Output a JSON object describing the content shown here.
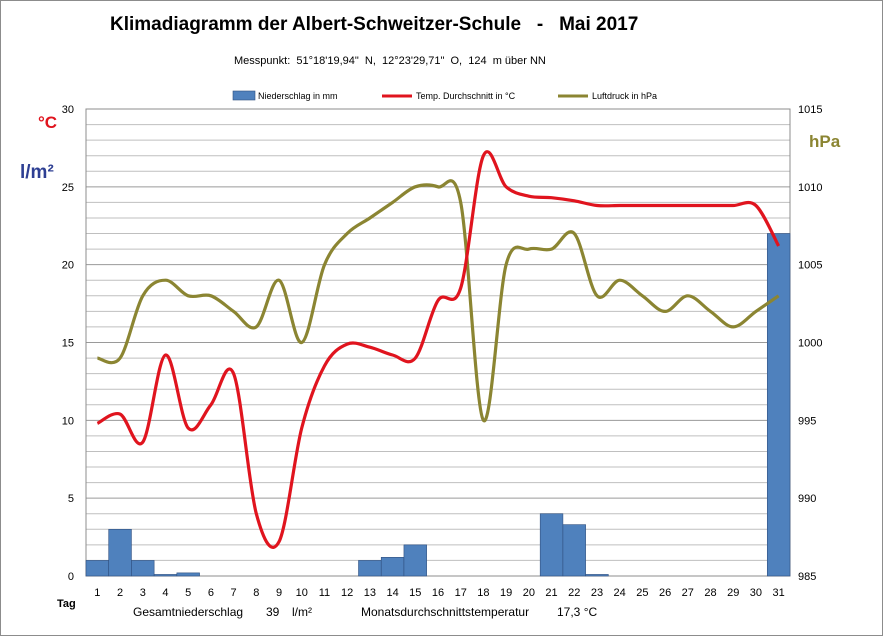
{
  "title": "Klimadiagramm der Albert-Schweitzer-Schule   -   Mai 2017",
  "subtitle": "Messpunkt:  51°18'19,94\"  N,  12°23'29,71\"  O,  124  m über NN",
  "units": {
    "temp": "°C",
    "precip": "l/m²",
    "pressure": "hPa"
  },
  "footer": {
    "precip_label": "Gesamtniederschlag",
    "precip_value": "39",
    "precip_unit": "l/m²",
    "temp_label": "Monatsdurchschnittstemperatur",
    "temp_value": "17,3 °C"
  },
  "colors": {
    "bar": "#4f81bd",
    "bar_stroke": "#2f4f7f",
    "temp": "#e0141e",
    "pressure": "#8b8532"
  },
  "chart_data": {
    "type": "bar+line",
    "xlabel": "Tag",
    "categories": [
      "1",
      "2",
      "3",
      "4",
      "5",
      "6",
      "7",
      "8",
      "9",
      "10",
      "11",
      "12",
      "13",
      "14",
      "15",
      "16",
      "17",
      "18",
      "19",
      "20",
      "21",
      "22",
      "23",
      "24",
      "25",
      "26",
      "27",
      "28",
      "29",
      "30",
      "31"
    ],
    "ylim_left": [
      0,
      30
    ],
    "yticks_left": [
      0,
      5,
      10,
      15,
      20,
      25,
      30
    ],
    "ylim_right": [
      985,
      1015
    ],
    "yticks_right": [
      985,
      990,
      995,
      1000,
      1005,
      1010,
      1015
    ],
    "legend_position": "top",
    "grid": true,
    "series": [
      {
        "name": "Niederschlag in mm",
        "type": "bar",
        "axis": "left",
        "values": [
          1,
          3,
          1,
          0.1,
          0.2,
          0,
          0,
          0,
          0,
          0,
          0,
          0,
          1,
          1.2,
          2,
          0,
          0,
          0,
          0,
          0,
          4,
          3.3,
          0.1,
          0,
          0,
          0,
          0,
          0,
          0,
          0,
          22
        ]
      },
      {
        "name": "Temp. Durchschnitt in °C",
        "type": "line",
        "axis": "left",
        "values": [
          9.8,
          10.4,
          8.6,
          14.2,
          9.5,
          11,
          13,
          4,
          2.2,
          9.5,
          13.5,
          14.9,
          14.7,
          14.2,
          14,
          17.7,
          18.5,
          27,
          25,
          24.4,
          24.3,
          24.1,
          23.8,
          23.8,
          23.8,
          23.8,
          23.8,
          23.8,
          23.8,
          23.8,
          21.2
        ]
      },
      {
        "name": "Luftdruck in hPa",
        "type": "line",
        "axis": "right",
        "values": [
          999,
          999,
          1003,
          1004,
          1003,
          1003,
          1002,
          1001,
          1004,
          1000,
          1005,
          1007,
          1008,
          1009,
          1010,
          1010,
          1009,
          995,
          1005,
          1006,
          1006,
          1007,
          1003,
          1004,
          1003,
          1002,
          1003,
          1002,
          1001,
          1002,
          1003
        ]
      }
    ]
  }
}
